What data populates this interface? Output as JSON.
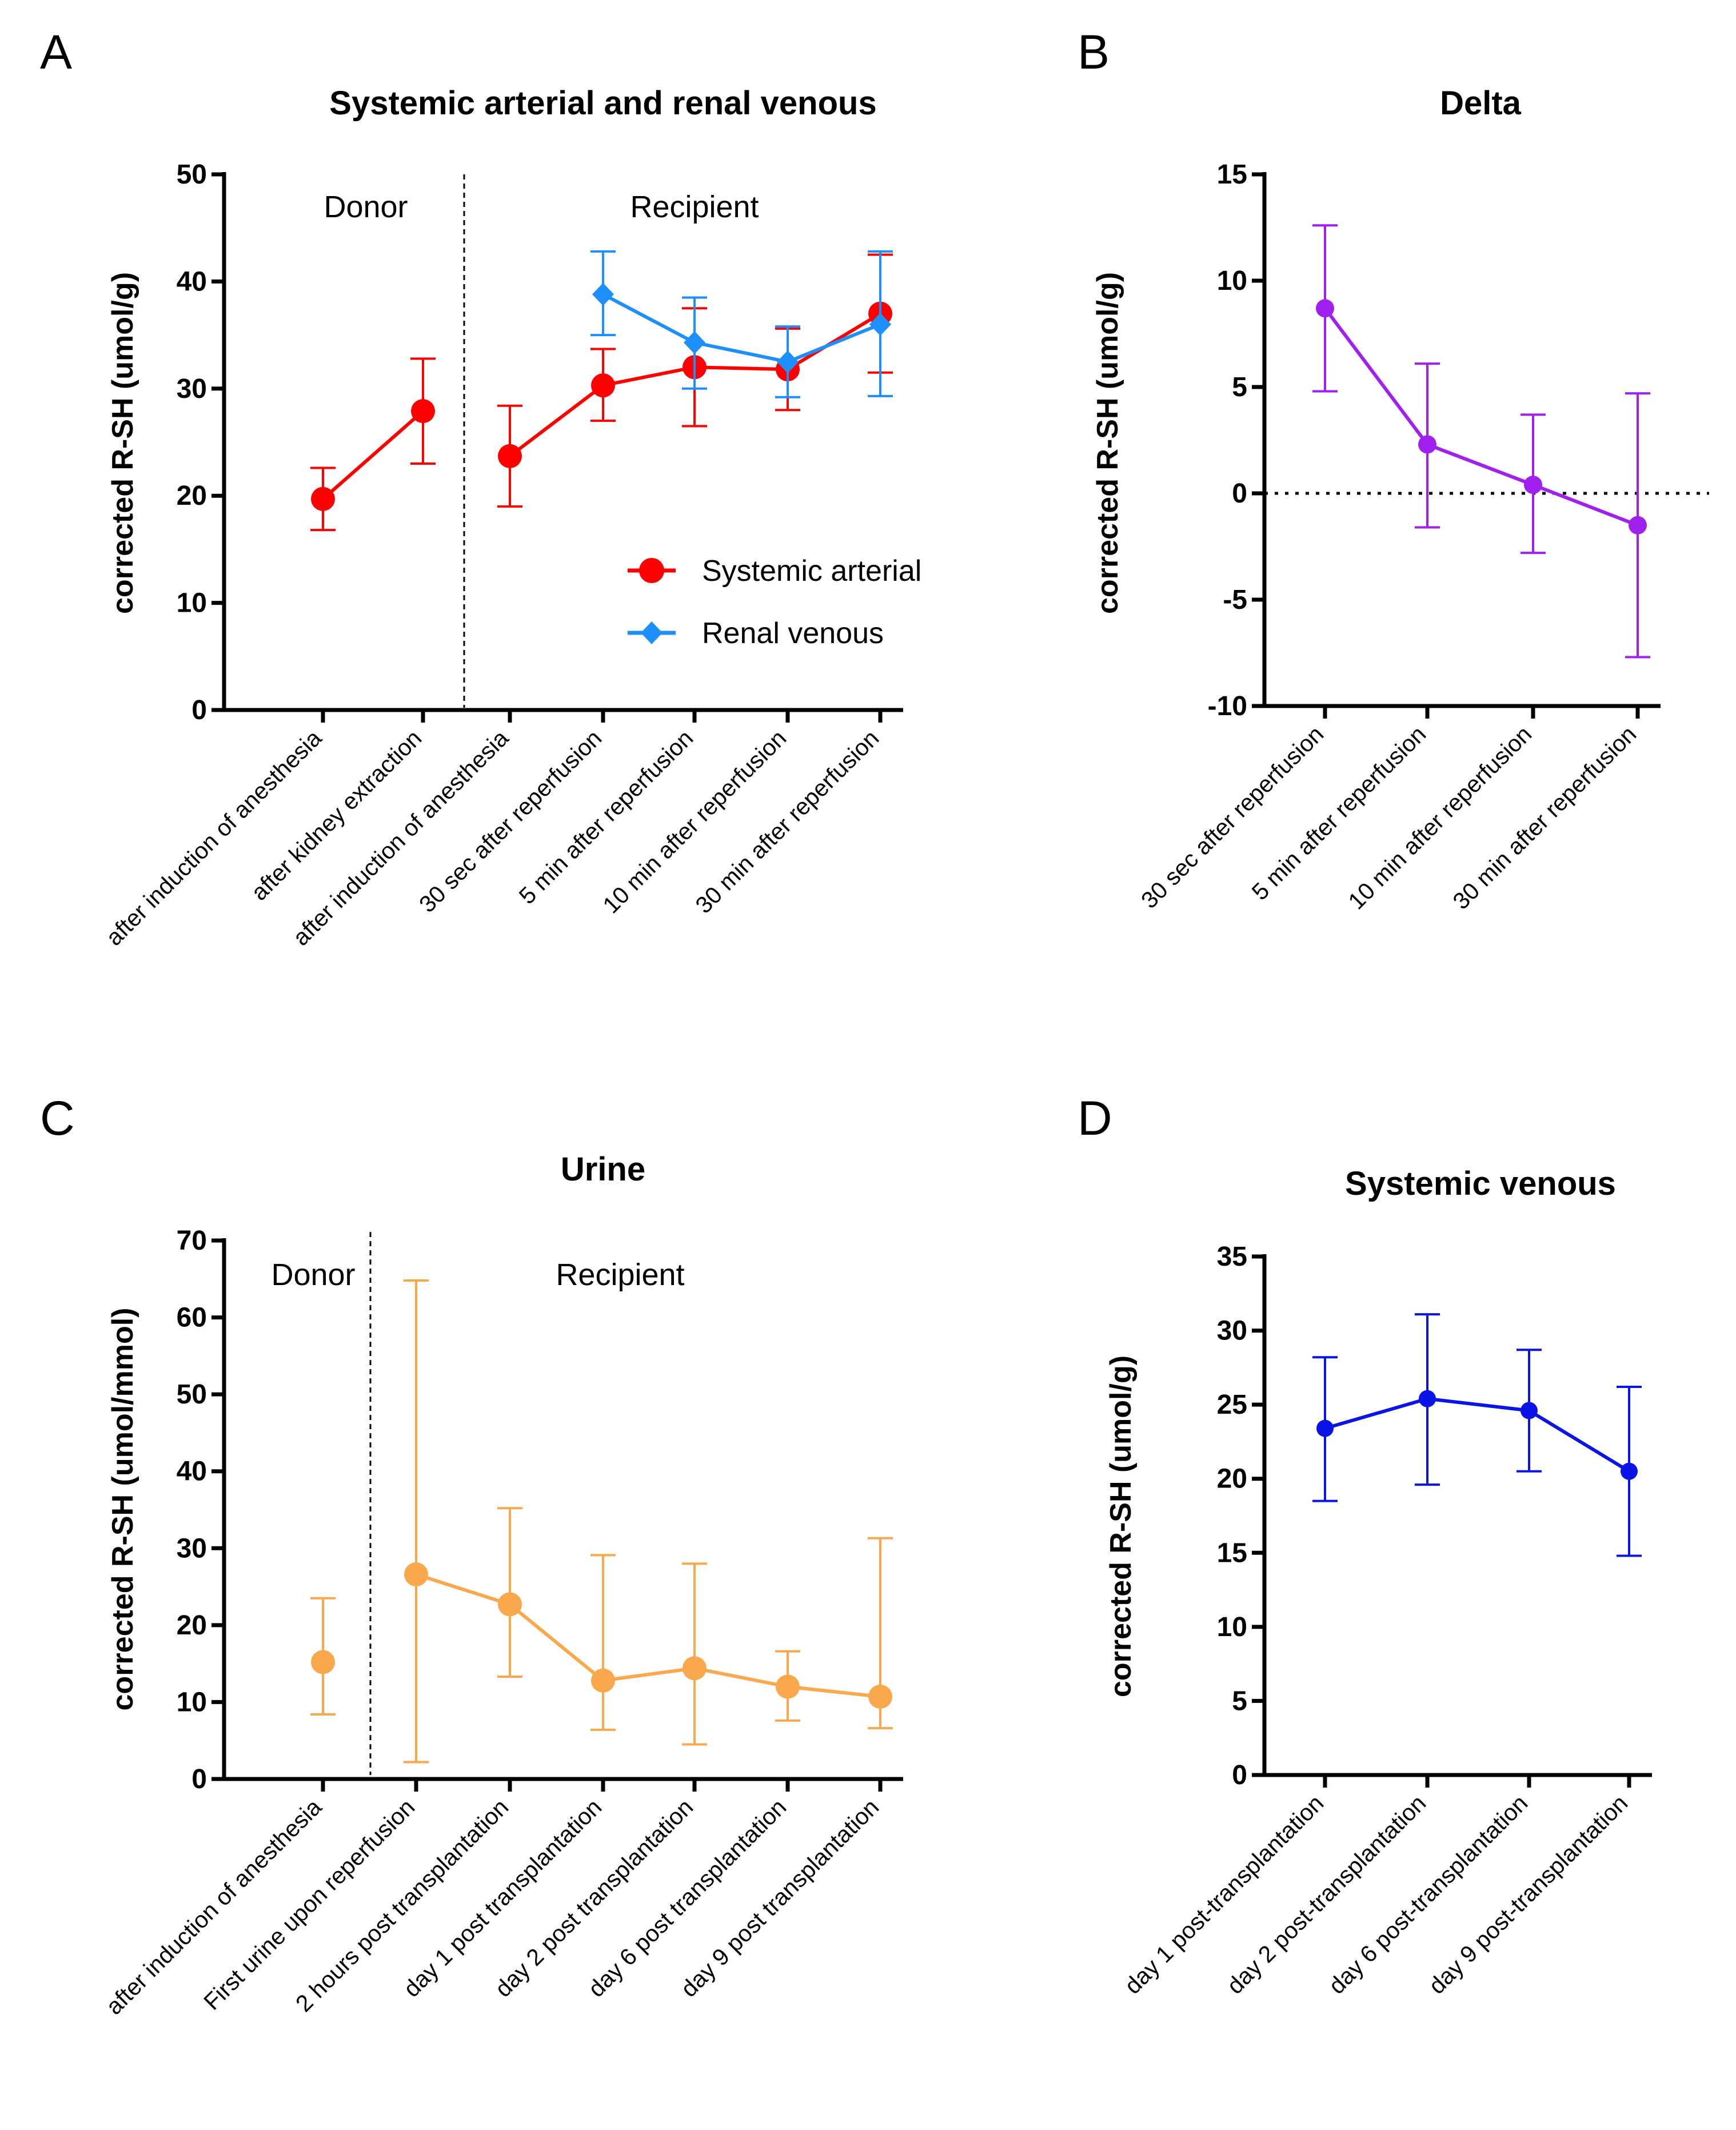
{
  "chart_data": [
    {
      "panel": "A",
      "type": "line",
      "title": "Systemic arterial and renal venous",
      "ylabel": "corrected R-SH (umol/g)",
      "xlabel": "",
      "ylim": [
        0,
        50
      ],
      "yticks": [
        0,
        10,
        20,
        30,
        40,
        50
      ],
      "categories": [
        "after induction of anesthesia",
        "after kidney extraction",
        "after induction of anesthesia",
        "30 sec after reperfusion",
        "5 min after reperfusion",
        "10 min after reperfusion",
        "30 min after reperfusion"
      ],
      "regions": [
        {
          "label": "Donor"
        },
        {
          "label": "Recipient"
        }
      ],
      "legend": [
        "Systemic arterial",
        "Renal venous"
      ],
      "legend_position": "bottom-right",
      "series": [
        {
          "name": "Systemic arterial",
          "color": "#ff0000",
          "marker": "circle",
          "segments": [
            [
              0,
              1
            ],
            [
              2,
              6
            ]
          ],
          "values": [
            19.7,
            27.9,
            23.7,
            30.3,
            32.0,
            31.8,
            37.0
          ],
          "err_low": [
            16.8,
            23.0,
            19.0,
            27.0,
            26.5,
            28.0,
            31.5
          ],
          "err_high": [
            22.6,
            32.8,
            28.4,
            33.7,
            37.5,
            35.6,
            42.5
          ]
        },
        {
          "name": "Renal venous",
          "color": "#1e8fff",
          "marker": "diamond",
          "segments": [
            [
              3,
              6
            ]
          ],
          "values": [
            null,
            null,
            null,
            38.8,
            34.3,
            32.5,
            36.0
          ],
          "err_low": [
            null,
            null,
            null,
            35.0,
            30.0,
            29.2,
            29.3
          ],
          "err_high": [
            null,
            null,
            null,
            42.8,
            38.5,
            35.8,
            42.8
          ]
        }
      ]
    },
    {
      "panel": "B",
      "type": "line",
      "title": "Delta",
      "ylabel": "corrected R-SH (umol/g)",
      "xlabel": "",
      "ylim": [
        -10,
        15
      ],
      "yticks": [
        -10,
        -5,
        0,
        5,
        10,
        15
      ],
      "zero_line": true,
      "categories": [
        "30 sec after reperfusion",
        "5 min after reperfusion",
        "10 min after reperfusion",
        "30 min after reperfusion"
      ],
      "series": [
        {
          "name": "Delta",
          "color": "#a020f0",
          "marker": "circle",
          "segments": [
            [
              0,
              3
            ]
          ],
          "values": [
            8.7,
            2.3,
            0.4,
            -1.5
          ],
          "err_low": [
            4.8,
            -1.6,
            -2.8,
            -7.7
          ],
          "err_high": [
            12.6,
            6.1,
            3.7,
            4.7
          ]
        }
      ]
    },
    {
      "panel": "C",
      "type": "line",
      "title": "Urine",
      "ylabel": "corrected R-SH (umol/mmol)",
      "xlabel": "",
      "ylim": [
        0,
        70
      ],
      "yticks": [
        0,
        10,
        20,
        30,
        40,
        50,
        60,
        70
      ],
      "categories": [
        "after induction of anesthesia",
        "First urine upon reperfusion",
        "2 hours post transplantation",
        "day 1 post transplantation",
        "day 2 post transplantation",
        "day 6 post transplantation",
        "day 9 post transplantation"
      ],
      "regions": [
        {
          "label": "Donor"
        },
        {
          "label": "Recipient"
        }
      ],
      "series": [
        {
          "name": "Urine",
          "color": "#f9a84c",
          "marker": "circle",
          "segments": [
            [
              1,
              6
            ]
          ],
          "values": [
            15.2,
            26.6,
            22.7,
            12.8,
            14.4,
            12.0,
            10.7
          ],
          "err_low": [
            8.4,
            2.2,
            13.3,
            6.4,
            4.5,
            7.6,
            6.6
          ],
          "err_high": [
            23.5,
            64.8,
            35.2,
            29.1,
            28.0,
            16.6,
            31.3
          ]
        }
      ]
    },
    {
      "panel": "D",
      "type": "line",
      "title": "Systemic venous",
      "ylabel": "corrected R-SH (umol/g)",
      "xlabel": "",
      "ylim": [
        0,
        35
      ],
      "yticks": [
        0,
        5,
        10,
        15,
        20,
        25,
        30,
        35
      ],
      "categories": [
        "day 1 post-transplantation",
        "day 2 post-transplantation",
        "day 6 post-transplantation",
        "day 9 post-transplantation"
      ],
      "series": [
        {
          "name": "Systemic venous",
          "color": "#0a14e6",
          "marker": "circle",
          "segments": [
            [
              0,
              3
            ]
          ],
          "values": [
            23.4,
            25.4,
            24.6,
            20.5
          ],
          "err_low": [
            18.5,
            19.6,
            20.5,
            14.8
          ],
          "err_high": [
            28.2,
            31.1,
            28.7,
            26.2
          ]
        }
      ]
    }
  ]
}
